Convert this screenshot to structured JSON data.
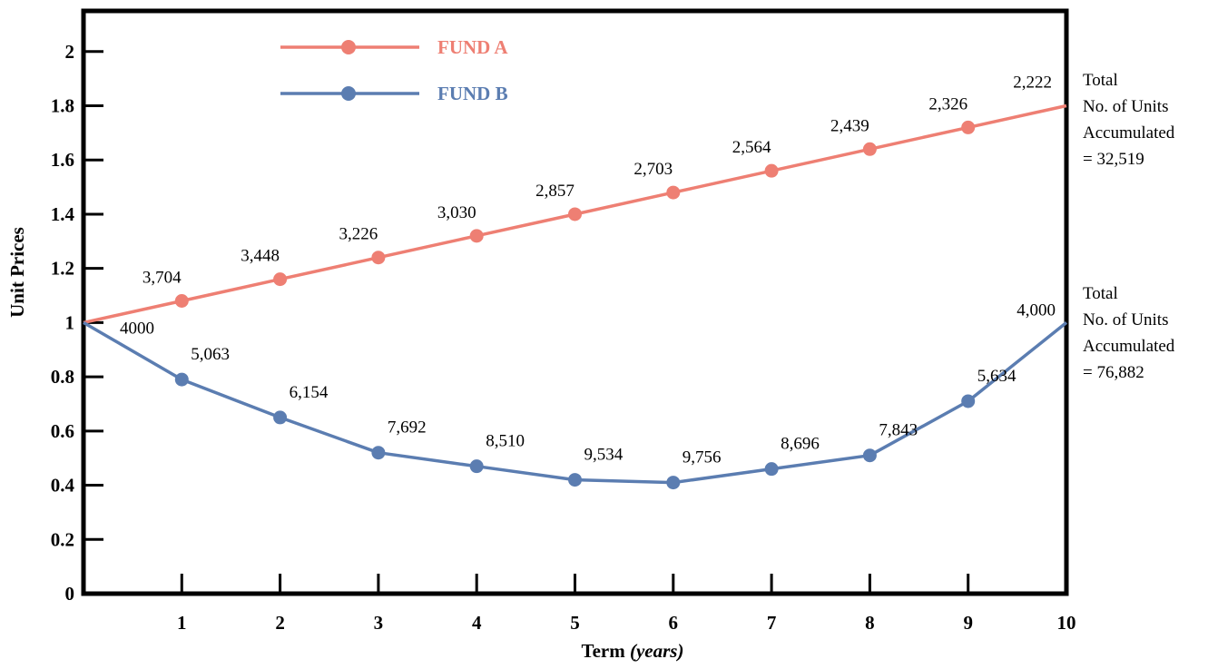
{
  "chart_data": {
    "type": "line",
    "xlabel": "Term",
    "xlabel_unit": "(years)",
    "ylabel": "Unit Prices",
    "x": [
      0,
      1,
      2,
      3,
      4,
      5,
      6,
      7,
      8,
      9,
      10
    ],
    "x_tick_labels": [
      "1",
      "2",
      "3",
      "4",
      "5",
      "6",
      "7",
      "8",
      "9",
      "10"
    ],
    "y_tick_labels": [
      "0",
      "0.2",
      "0.4",
      "0.6",
      "0.8",
      "1",
      "1.2",
      "1.4",
      "1.6",
      "1.8",
      "2"
    ],
    "xlim": [
      0,
      10
    ],
    "ylim": [
      0,
      2.15
    ],
    "grid": false,
    "legend_position": "top-left",
    "series": [
      {
        "name": "FUND A",
        "color": "#EE7F73",
        "values": [
          1.0,
          1.08,
          1.16,
          1.24,
          1.32,
          1.4,
          1.48,
          1.56,
          1.64,
          1.72,
          1.8
        ],
        "labels": [
          "",
          "3,704",
          "3,448",
          "3,226",
          "3,030",
          "2,857",
          "2,703",
          "2,564",
          "2,439",
          "2,326",
          "2,222"
        ],
        "total_note": [
          "Total",
          "No. of Units",
          "Accumulated",
          "= 32,519"
        ]
      },
      {
        "name": "FUND B",
        "color": "#5B7DB1",
        "values": [
          1.0,
          0.79,
          0.65,
          0.52,
          0.47,
          0.42,
          0.41,
          0.46,
          0.51,
          0.71,
          1.0
        ],
        "labels": [
          "4000",
          "5,063",
          "6,154",
          "7,692",
          "8,510",
          "9,534",
          "9,756",
          "8,696",
          "7,843",
          "5,634",
          "4,000"
        ],
        "total_note": [
          "Total",
          "No. of Units",
          "Accumulated",
          "= 76,882"
        ]
      }
    ]
  }
}
